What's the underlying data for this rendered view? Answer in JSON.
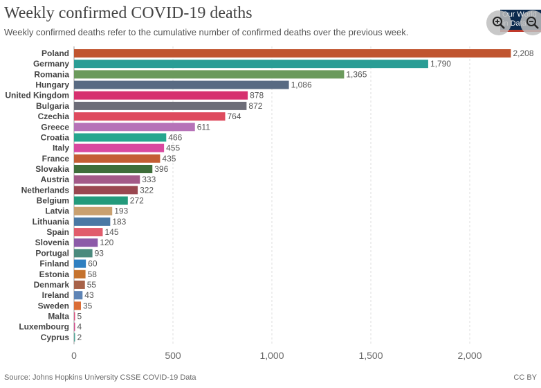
{
  "header": {
    "title": "Weekly confirmed COVID-19 deaths",
    "subtitle": "Weekly confirmed deaths refer to the cumulative number of confirmed deaths over the previous week."
  },
  "logo": {
    "text": "Our World\nin Data"
  },
  "controls": {
    "zoom_in_icon": "zoom-in-icon",
    "zoom_out_icon": "zoom-out-icon"
  },
  "footer": {
    "source": "Source: Johns Hopkins University CSSE COVID-19 Data",
    "license": "CC BY"
  },
  "chart_data": {
    "type": "bar",
    "orientation": "horizontal",
    "title": "Weekly confirmed COVID-19 deaths",
    "xlim": [
      0,
      2250
    ],
    "xticks": [
      0,
      500,
      1000,
      1500,
      2000
    ],
    "xtick_labels": [
      "0",
      "500",
      "1,000",
      "1,500",
      "2,000"
    ],
    "grid": true,
    "categories": [
      "Poland",
      "Germany",
      "Romania",
      "Hungary",
      "United Kingdom",
      "Bulgaria",
      "Czechia",
      "Greece",
      "Croatia",
      "Italy",
      "France",
      "Slovakia",
      "Austria",
      "Netherlands",
      "Belgium",
      "Latvia",
      "Lithuania",
      "Spain",
      "Slovenia",
      "Portugal",
      "Finland",
      "Estonia",
      "Denmark",
      "Ireland",
      "Sweden",
      "Malta",
      "Luxembourg",
      "Cyprus"
    ],
    "values": [
      2208,
      1790,
      1365,
      1086,
      878,
      872,
      764,
      611,
      466,
      455,
      435,
      396,
      333,
      322,
      272,
      193,
      183,
      145,
      120,
      93,
      60,
      58,
      55,
      43,
      35,
      5,
      4,
      2
    ],
    "value_labels": [
      "2,208",
      "1,790",
      "1,365",
      "1,086",
      "878",
      "872",
      "764",
      "611",
      "466",
      "455",
      "435",
      "396",
      "333",
      "322",
      "272",
      "193",
      "183",
      "145",
      "120",
      "93",
      "60",
      "58",
      "55",
      "43",
      "35",
      "5",
      "4",
      "2"
    ],
    "colors": [
      "#c0542f",
      "#2a9d95",
      "#6b9a5c",
      "#586a82",
      "#d6306f",
      "#6d6d78",
      "#de4b5e",
      "#b672b8",
      "#25a68e",
      "#d9489f",
      "#c45d34",
      "#3e6e3a",
      "#a35a88",
      "#9a4750",
      "#239a7b",
      "#c9a06f",
      "#4a78a4",
      "#e15c6c",
      "#8c5aa8",
      "#4a8a7d",
      "#2f7fc0",
      "#c5732f",
      "#a76249",
      "#5e84b5",
      "#db6e37",
      "#d9507e",
      "#d14a8a",
      "#50a496"
    ]
  }
}
